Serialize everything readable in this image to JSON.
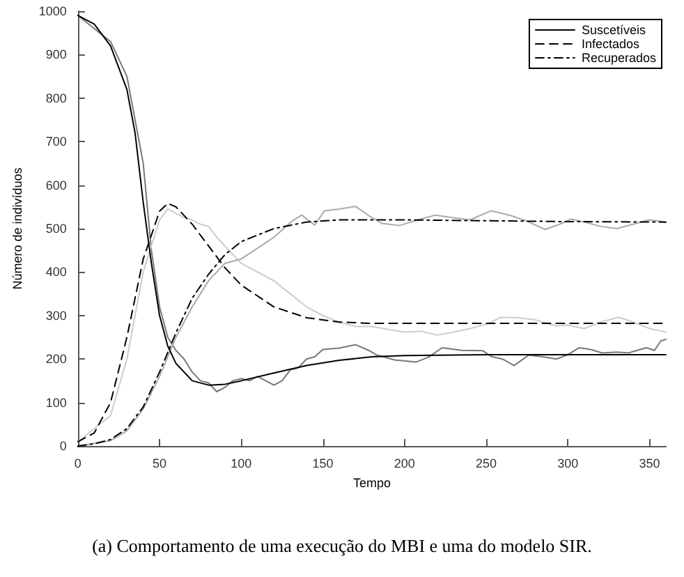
{
  "chart_data": {
    "type": "line",
    "xlabel": "Tempo",
    "ylabel": "Número de indivíduos",
    "xlim": [
      0,
      360
    ],
    "xticks": [
      0,
      50,
      100,
      150,
      200,
      250,
      300,
      350
    ],
    "ylim": [
      0,
      1000
    ],
    "yticks": [
      0,
      100,
      200,
      300,
      400,
      500,
      600,
      700,
      800,
      900,
      1000
    ],
    "grid": false,
    "legend": "top right",
    "marker": "none",
    "annotations": [
      "(a) Comportamento de uma execução do MBI e uma do modelo SIR."
    ],
    "series": [
      {
        "color": "#777777",
        "line_style": "solid",
        "x": [
          0,
          20,
          30,
          40,
          45,
          50,
          55,
          60,
          65,
          70,
          75,
          80,
          85,
          90,
          95,
          100,
          105,
          110,
          115,
          120,
          125,
          130,
          135,
          140,
          145,
          150,
          160,
          170,
          178,
          183,
          194,
          207,
          215,
          223,
          235,
          248,
          253,
          260,
          267,
          276,
          285,
          293,
          300,
          307,
          314,
          321,
          330,
          337,
          348,
          353,
          357,
          360
        ],
        "values": [
          990,
          930,
          850,
          650,
          450,
          320,
          250,
          220,
          200,
          170,
          150,
          145,
          125,
          135,
          150,
          155,
          150,
          160,
          150,
          140,
          150,
          175,
          180,
          200,
          205,
          222,
          225,
          233,
          220,
          209,
          198,
          193,
          205,
          226,
          220,
          219,
          206,
          200,
          185,
          209,
          205,
          200,
          210,
          226,
          222,
          214,
          216,
          214,
          226,
          220,
          242,
          245
        ]
      },
      {
        "color": "#cccccc",
        "line_style": "solid",
        "x": [
          0,
          20,
          30,
          40,
          50,
          55,
          60,
          65,
          70,
          75,
          80,
          85,
          90,
          95,
          100,
          110,
          120,
          130,
          140,
          150,
          160,
          170,
          180,
          190,
          200,
          210,
          220,
          230,
          240,
          250,
          259,
          270,
          280,
          293,
          300,
          310,
          320,
          331,
          340,
          350,
          360
        ],
        "values": [
          10,
          70,
          200,
          400,
          520,
          545,
          535,
          525,
          520,
          510,
          505,
          480,
          460,
          440,
          420,
          400,
          380,
          350,
          320,
          300,
          285,
          275,
          275,
          268,
          262,
          264,
          255,
          262,
          270,
          280,
          296,
          295,
          290,
          276,
          278,
          270,
          285,
          296,
          285,
          270,
          262
        ]
      },
      {
        "color": "#aaaaaa",
        "line_style": "solid",
        "x": [
          0,
          20,
          30,
          40,
          50,
          60,
          70,
          80,
          90,
          95,
          100,
          110,
          120,
          131,
          137,
          145,
          151,
          160,
          170,
          178,
          186,
          197,
          208,
          219,
          230,
          240,
          253,
          265,
          275,
          286,
          295,
          302,
          310,
          320,
          330,
          340,
          350,
          360
        ],
        "values": [
          0,
          12,
          35,
          85,
          160,
          250,
          320,
          380,
          420,
          425,
          430,
          455,
          480,
          517,
          531,
          508,
          541,
          545,
          551,
          530,
          512,
          507,
          520,
          531,
          525,
          520,
          541,
          530,
          517,
          498,
          510,
          522,
          515,
          505,
          500,
          510,
          520,
          515
        ]
      },
      {
        "name": "Suscetíveis",
        "color": "#000000",
        "line_style": "solid",
        "x": [
          0,
          10,
          20,
          30,
          35,
          40,
          45,
          50,
          55,
          60,
          70,
          80,
          90,
          100,
          120,
          140,
          160,
          180,
          200,
          250,
          300,
          360
        ],
        "values": [
          990,
          970,
          920,
          820,
          720,
          560,
          420,
          300,
          230,
          190,
          150,
          140,
          142,
          150,
          168,
          185,
          197,
          205,
          208,
          210,
          210,
          210
        ]
      },
      {
        "name": "Infectados",
        "color": "#000000",
        "line_style": "dashed",
        "x": [
          0,
          10,
          20,
          30,
          40,
          50,
          55,
          60,
          70,
          80,
          90,
          100,
          120,
          140,
          160,
          180,
          200,
          250,
          300,
          360
        ],
        "values": [
          10,
          30,
          100,
          250,
          430,
          540,
          558,
          550,
          510,
          460,
          410,
          370,
          320,
          295,
          285,
          282,
          282,
          282,
          282,
          282
        ]
      },
      {
        "name": "Recuperados",
        "color": "#000000",
        "line_style": "dashdot",
        "x": [
          0,
          10,
          20,
          30,
          40,
          50,
          60,
          70,
          80,
          90,
          100,
          120,
          140,
          160,
          200,
          250,
          300,
          360
        ],
        "values": [
          0,
          5,
          15,
          40,
          90,
          170,
          260,
          340,
          395,
          440,
          470,
          500,
          515,
          520,
          520,
          518,
          516,
          515
        ]
      }
    ]
  }
}
